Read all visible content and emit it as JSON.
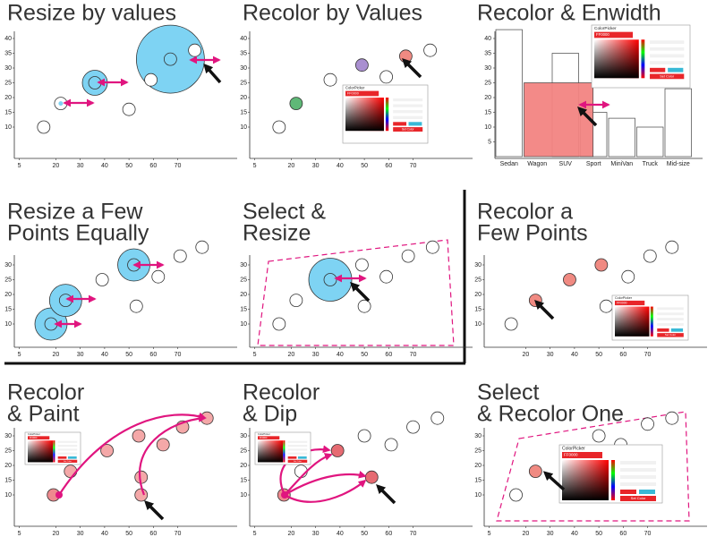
{
  "panels": [
    {
      "type": "scatter",
      "title_lines": [
        "Resize by values"
      ],
      "xlim": [
        0,
        90
      ],
      "ylim": [
        0,
        45
      ],
      "xticks": [
        5,
        20,
        30,
        40,
        50,
        60,
        70
      ],
      "yticks": [
        10,
        15,
        20,
        25,
        30,
        35,
        40
      ],
      "points": [
        {
          "x": 15,
          "y": 10,
          "color": null
        },
        {
          "x": 22,
          "y": 18,
          "color": null
        },
        {
          "x": 36,
          "y": 25,
          "color": "#7ed3f3"
        },
        {
          "x": 50,
          "y": 16,
          "color": null
        },
        {
          "x": 59,
          "y": 26,
          "color": null
        },
        {
          "x": 67,
          "y": 33,
          "color": "#7ed3f3"
        },
        {
          "x": 77,
          "y": 36,
          "color": null
        }
      ]
    },
    {
      "type": "scatter",
      "title_lines": [
        "Recolor by Values"
      ],
      "xlim": [
        0,
        90
      ],
      "ylim": [
        0,
        45
      ],
      "xticks": [
        5,
        20,
        30,
        40,
        50,
        60,
        70
      ],
      "yticks": [
        10,
        15,
        20,
        25,
        30,
        35,
        40
      ],
      "points": [
        {
          "x": 15,
          "y": 10,
          "color": null
        },
        {
          "x": 22,
          "y": 18,
          "color": "#5fb877"
        },
        {
          "x": 36,
          "y": 26,
          "color": null
        },
        {
          "x": 49,
          "y": 31,
          "color": "#a98fd0"
        },
        {
          "x": 59,
          "y": 27,
          "color": null
        },
        {
          "x": 67,
          "y": 34,
          "color": "#f08a82"
        },
        {
          "x": 77,
          "y": 36,
          "color": null
        }
      ]
    },
    {
      "type": "bar",
      "title_lines": [
        "Recolor & Enwidth"
      ],
      "ylim": [
        0,
        45
      ],
      "yticks": [
        5,
        10,
        15,
        20,
        25,
        30,
        35,
        40
      ],
      "categories": [
        "Sedan",
        "Wagon",
        "SUV",
        "Sport",
        "MiniVan",
        "Truck",
        "Mid-size"
      ],
      "values": [
        43,
        25,
        35,
        15,
        13,
        10,
        23
      ],
      "colors": [
        null,
        "#f28482",
        null,
        null,
        null,
        null,
        null
      ]
    },
    {
      "type": "scatter",
      "title_lines": [
        "Resize a Few",
        "Points Equally"
      ],
      "xlim": [
        0,
        90
      ],
      "ylim": [
        0,
        45
      ],
      "xticks": [
        5,
        20,
        30,
        40,
        50,
        60,
        70
      ],
      "yticks": [
        10,
        15,
        20,
        25,
        30
      ],
      "points": [
        {
          "x": 18,
          "y": 10,
          "color": "#7ed3f3"
        },
        {
          "x": 24,
          "y": 18,
          "color": "#7ed3f3"
        },
        {
          "x": 39,
          "y": 25,
          "color": null
        },
        {
          "x": 52,
          "y": 30,
          "color": "#7ed3f3"
        },
        {
          "x": 53,
          "y": 16,
          "color": null
        },
        {
          "x": 62,
          "y": 26,
          "color": null
        },
        {
          "x": 71,
          "y": 33,
          "color": null
        },
        {
          "x": 80,
          "y": 36,
          "color": null
        }
      ]
    },
    {
      "type": "scatter",
      "title_lines": [
        "Select &",
        "Resize"
      ],
      "xlim": [
        0,
        90
      ],
      "ylim": [
        0,
        45
      ],
      "xticks": [
        5,
        20,
        30,
        40,
        50,
        60,
        70
      ],
      "yticks": [
        10,
        15,
        20,
        25,
        30
      ],
      "points": [
        {
          "x": 15,
          "y": 10,
          "color": null
        },
        {
          "x": 22,
          "y": 18,
          "color": null
        },
        {
          "x": 36,
          "y": 25,
          "color": "#7ed3f3"
        },
        {
          "x": 50,
          "y": 16,
          "color": null
        },
        {
          "x": 49,
          "y": 30,
          "color": null
        },
        {
          "x": 59,
          "y": 26,
          "color": null
        },
        {
          "x": 68,
          "y": 33,
          "color": null
        },
        {
          "x": 78,
          "y": 36,
          "color": null
        }
      ]
    },
    {
      "type": "scatter",
      "title_lines": [
        "Recolor a",
        "Few Points"
      ],
      "xlim": [
        0,
        90
      ],
      "ylim": [
        0,
        45
      ],
      "xticks": [
        20,
        30,
        40,
        50,
        60,
        70
      ],
      "yticks": [
        10,
        15,
        20,
        25,
        30
      ],
      "points": [
        {
          "x": 14,
          "y": 10,
          "color": null
        },
        {
          "x": 24,
          "y": 18,
          "color": "#f08a82"
        },
        {
          "x": 38,
          "y": 25,
          "color": "#f08a82"
        },
        {
          "x": 51,
          "y": 30,
          "color": "#f08a82"
        },
        {
          "x": 53,
          "y": 16,
          "color": null
        },
        {
          "x": 62,
          "y": 26,
          "color": null
        },
        {
          "x": 71,
          "y": 33,
          "color": null
        },
        {
          "x": 80,
          "y": 36,
          "color": null
        }
      ]
    },
    {
      "type": "scatter",
      "title_lines": [
        "Recolor",
        "& Paint"
      ],
      "xlim": [
        0,
        90
      ],
      "ylim": [
        0,
        45
      ],
      "xticks": [
        5,
        20,
        30,
        40,
        50,
        60,
        70
      ],
      "yticks": [
        10,
        15,
        20,
        25,
        30
      ],
      "points": [
        {
          "x": 19,
          "y": 10,
          "color": "#ee8a8e"
        },
        {
          "x": 26,
          "y": 18,
          "color": "#f4a8a8"
        },
        {
          "x": 41,
          "y": 25,
          "color": "#f4a8a8"
        },
        {
          "x": 54,
          "y": 30,
          "color": "#f4a8a8"
        },
        {
          "x": 55,
          "y": 16,
          "color": "#f4a8a8"
        },
        {
          "x": 55,
          "y": 10,
          "color": "#f4a8a8"
        },
        {
          "x": 64,
          "y": 27,
          "color": "#f4a8a8"
        },
        {
          "x": 72,
          "y": 33,
          "color": "#f4a8a8"
        },
        {
          "x": 82,
          "y": 36,
          "color": "#f4a8a8"
        }
      ]
    },
    {
      "type": "scatter",
      "title_lines": [
        "Recolor",
        "& Dip"
      ],
      "xlim": [
        0,
        90
      ],
      "ylim": [
        0,
        45
      ],
      "xticks": [
        5,
        20,
        30,
        40,
        50,
        60,
        70
      ],
      "yticks": [
        10,
        15,
        20,
        25,
        30
      ],
      "points": [
        {
          "x": 17,
          "y": 10,
          "color": "#ee8a8e"
        },
        {
          "x": 24,
          "y": 18,
          "color": null
        },
        {
          "x": 39,
          "y": 25,
          "color": "#e66b72"
        },
        {
          "x": 50,
          "y": 30,
          "color": null
        },
        {
          "x": 53,
          "y": 16,
          "color": "#e66b72"
        },
        {
          "x": 61,
          "y": 27,
          "color": null
        },
        {
          "x": 70,
          "y": 33,
          "color": null
        },
        {
          "x": 80,
          "y": 36,
          "color": null
        }
      ]
    },
    {
      "type": "scatter",
      "title_lines": [
        "Select",
        "& Recolor One"
      ],
      "xlim": [
        0,
        90
      ],
      "ylim": [
        0,
        45
      ],
      "xticks": [
        5,
        20,
        30,
        40,
        50,
        60,
        70
      ],
      "yticks": [
        10,
        15,
        20,
        25,
        30
      ],
      "points": [
        {
          "x": 16,
          "y": 10,
          "color": null
        },
        {
          "x": 24,
          "y": 18,
          "color": "#f08a82"
        },
        {
          "x": 50,
          "y": 30,
          "color": null
        },
        {
          "x": 59,
          "y": 27,
          "color": null
        },
        {
          "x": 70,
          "y": 34,
          "color": null
        },
        {
          "x": 80,
          "y": 36,
          "color": null
        }
      ]
    }
  ],
  "color_picker": {
    "title": "ColorPicker",
    "hex": "FF0000",
    "button": "Set Color"
  }
}
